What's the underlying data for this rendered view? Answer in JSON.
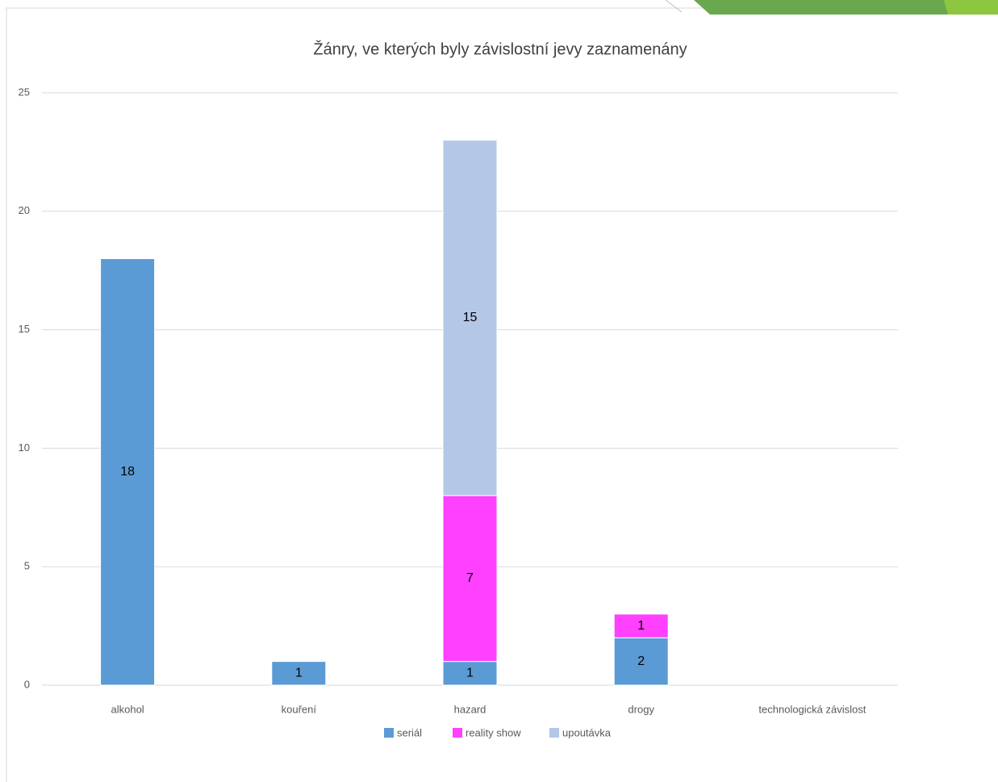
{
  "chart_data": {
    "type": "stacked_bar",
    "title": "Žánry, ve kterých byly závislostní jevy zaznamenány",
    "categories": [
      "alkohol",
      "kouření",
      "hazard",
      "drogy",
      "technologická závislost"
    ],
    "series": [
      {
        "name": "seriál",
        "color": "#5b9bd5",
        "values": [
          18,
          1,
          1,
          2,
          null
        ]
      },
      {
        "name": "reality show",
        "color": "#ff40ff",
        "values": [
          null,
          null,
          7,
          1,
          null
        ]
      },
      {
        "name": "upoutávka",
        "color": "#b4c7e7",
        "values": [
          null,
          null,
          15,
          null,
          null
        ]
      }
    ],
    "ylim": [
      0,
      25
    ],
    "yticks": [
      0,
      5,
      10,
      15,
      20,
      25
    ],
    "grid": true,
    "legend": "bottom"
  }
}
